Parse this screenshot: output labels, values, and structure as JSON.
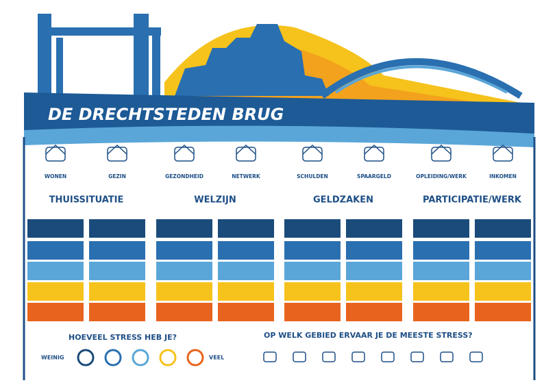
{
  "header": {
    "title": "DE DRECHTSTEDEN BRUG"
  },
  "areas": [
    "WONEN",
    "GEZIN",
    "GEZONDHEID",
    "NETWERK",
    "SCHULDEN",
    "SPAARGELD",
    "OPLEIDING/WERK",
    "INKOMEN"
  ],
  "groups": [
    "THUISSITUATIE",
    "WELZIJN",
    "GELDZAKEN",
    "PARTICIPATIE/WERK"
  ],
  "stress_question": "HOEVEEL STRESS HEB JE?",
  "scale_low": "WEINIG",
  "scale_high": "VEEL",
  "area_question": "OP WELK GEBIED ERVAAR JE DE MEESTE STRESS?"
}
